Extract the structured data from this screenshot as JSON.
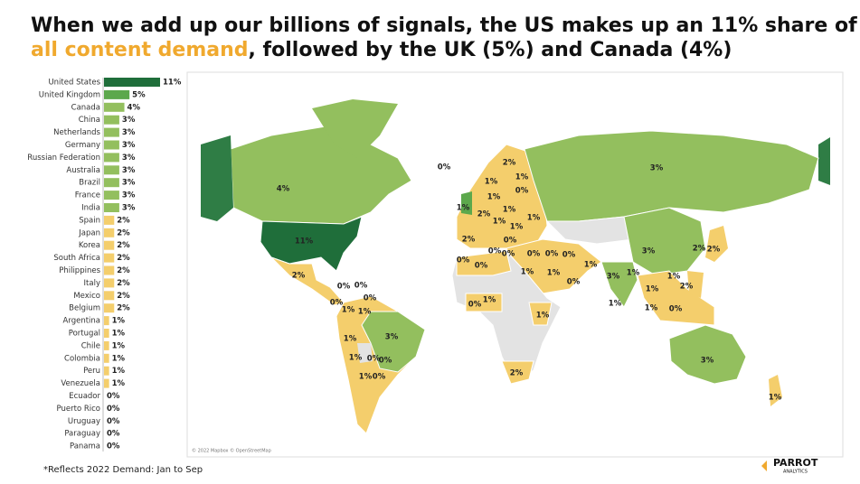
{
  "header": {
    "title_line1": "When we add up our billions of signals, the US makes up an 11% share of",
    "title_highlight": "all content demand",
    "title_rest": ", followed by the UK (5%) and Canada (4%)"
  },
  "chart_data": {
    "type": "bar",
    "orientation": "horizontal",
    "categories": [
      "United States",
      "United Kingdom",
      "Canada",
      "China",
      "Netherlands",
      "Germany",
      "Russian Federation",
      "Australia",
      "Brazil",
      "France",
      "India",
      "Spain",
      "Japan",
      "Korea",
      "South Africa",
      "Philippines",
      "Italy",
      "Mexico",
      "Belgium",
      "Argentina",
      "Portugal",
      "Chile",
      "Colombia",
      "Peru",
      "Venezuela",
      "Ecuador",
      "Puerto Rico",
      "Uruguay",
      "Paraguay",
      "Panama"
    ],
    "values": [
      11,
      5,
      4,
      3,
      3,
      3,
      3,
      3,
      3,
      3,
      3,
      2,
      2,
      2,
      2,
      2,
      2,
      2,
      2,
      1,
      1,
      1,
      1,
      1,
      1,
      0,
      0,
      0,
      0,
      0
    ],
    "value_labels": [
      "11%",
      "5%",
      "4%",
      "3%",
      "3%",
      "3%",
      "3%",
      "3%",
      "3%",
      "3%",
      "3%",
      "2%",
      "2%",
      "2%",
      "2%",
      "2%",
      "2%",
      "2%",
      "2%",
      "1%",
      "1%",
      "1%",
      "1%",
      "1%",
      "1%",
      "0%",
      "0%",
      "0%",
      "0%",
      "0%"
    ],
    "colors": [
      "#1f6e3a",
      "#5ca84c",
      "#93bf5e",
      "#93bf5e",
      "#93bf5e",
      "#93bf5e",
      "#93bf5e",
      "#93bf5e",
      "#93bf5e",
      "#93bf5e",
      "#93bf5e",
      "#f4ce6c",
      "#f4ce6c",
      "#f4ce6c",
      "#f4ce6c",
      "#f4ce6c",
      "#f4ce6c",
      "#f4ce6c",
      "#f4ce6c",
      "#f4ce6c",
      "#f4ce6c",
      "#f4ce6c",
      "#f4ce6c",
      "#f4ce6c",
      "#f4ce6c",
      "#f4ce6c",
      "#f4ce6c",
      "#f4ce6c",
      "#f4ce6c",
      "#f4ce6c"
    ]
  },
  "map": {
    "labels": [
      "0%",
      "4%",
      "11%",
      "2%",
      "3%",
      "2%",
      "1%",
      "1%",
      "1%",
      "0%",
      "1%",
      "2%",
      "1%",
      "1%",
      "1%",
      "1%",
      "2%",
      "0%",
      "0%",
      "0%",
      "0%",
      "0%",
      "0%",
      "0%",
      "0%",
      "1%",
      "1%",
      "1%",
      "0%",
      "3%",
      "3%",
      "1%",
      "1%",
      "2%",
      "2%",
      "1%",
      "2%",
      "1%",
      "1%",
      "0%",
      "0%",
      "0%",
      "0%",
      "0%",
      "1%",
      "1%",
      "0%",
      "1%",
      "1%",
      "3%",
      "1%",
      "1%",
      "0%",
      "0%",
      "1%",
      "0%",
      "2%",
      "3%",
      "1%"
    ],
    "attribution": "© 2022 Mapbox © OpenStreetMap"
  },
  "footnote": "*Reflects 2022 Demand: Jan to Sep",
  "logo": {
    "name": "PARROT",
    "sub": "ANALYTICS"
  }
}
